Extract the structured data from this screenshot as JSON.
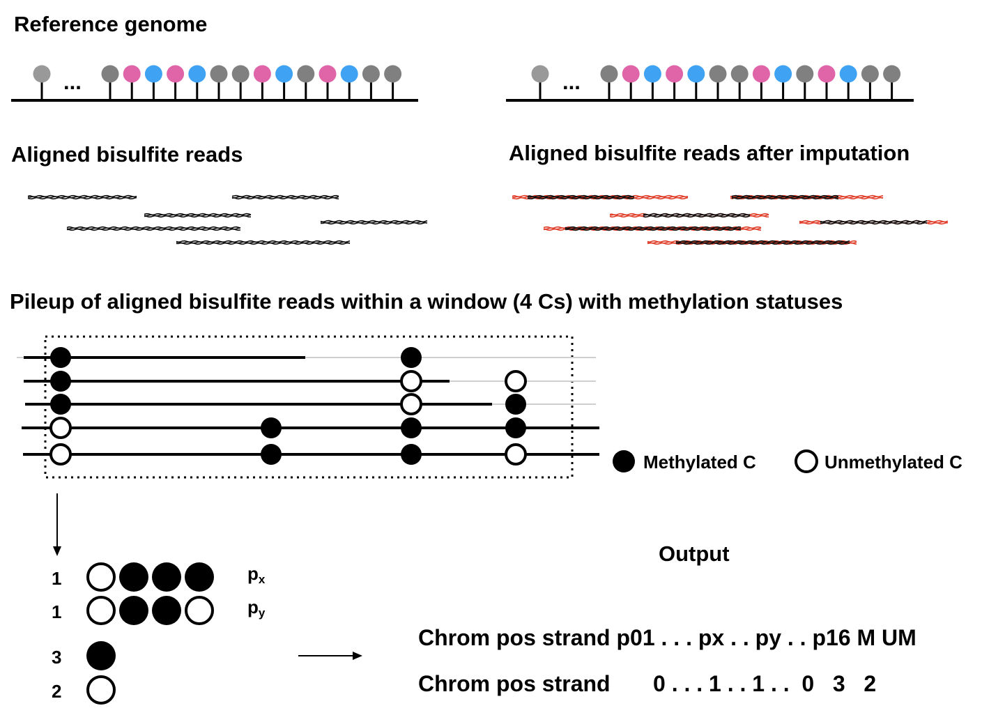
{
  "headings": {
    "reference": "Reference genome",
    "aligned": "Aligned bisulfite reads",
    "aligned_imputed": "Aligned bisulfite reads after imputation",
    "pileup": "Pileup of aligned bisulfite reads within a window (4 Cs) with methylation statuses",
    "output": "Output"
  },
  "ellipsis": "...",
  "colors": {
    "gray": "#808080",
    "pink": "#e064a8",
    "blue": "#3fa2f2",
    "light_gray": "#999999",
    "read_black": "#111111",
    "read_red": "#e0402c",
    "faint_line": "#cfcfcf"
  },
  "reference_sequence": [
    "gray",
    "pink",
    "blue",
    "pink",
    "blue",
    "gray",
    "gray",
    "pink",
    "blue",
    "gray",
    "pink",
    "blue",
    "gray",
    "gray"
  ],
  "legend": {
    "methylated": "Methylated C",
    "unmethylated": "Unmethylated C"
  },
  "pileup_rows": [
    [
      "M",
      null,
      "M",
      null
    ],
    [
      "M",
      null,
      "U",
      "U"
    ],
    [
      "M",
      null,
      "U",
      "M"
    ],
    [
      "U",
      "M",
      "M",
      "M"
    ],
    [
      "U",
      "M",
      "M",
      "U"
    ]
  ],
  "patterns": [
    {
      "count": "1",
      "states": [
        "U",
        "M",
        "M",
        "M"
      ],
      "label": "p",
      "sub": "x"
    },
    {
      "count": "1",
      "states": [
        "U",
        "M",
        "M",
        "U"
      ],
      "label": "p",
      "sub": "y"
    },
    {
      "count": "3",
      "states": [
        "M"
      ],
      "label": "",
      "sub": ""
    },
    {
      "count": "2",
      "states": [
        "U"
      ],
      "label": "",
      "sub": ""
    }
  ],
  "output": {
    "header": "Chrom pos strand p01 . . . px . . py . . p16 M UM",
    "row_prefix": "Chrom pos strand",
    "row_values": "0 . . . 1 . . 1 . .  0   3   2"
  }
}
